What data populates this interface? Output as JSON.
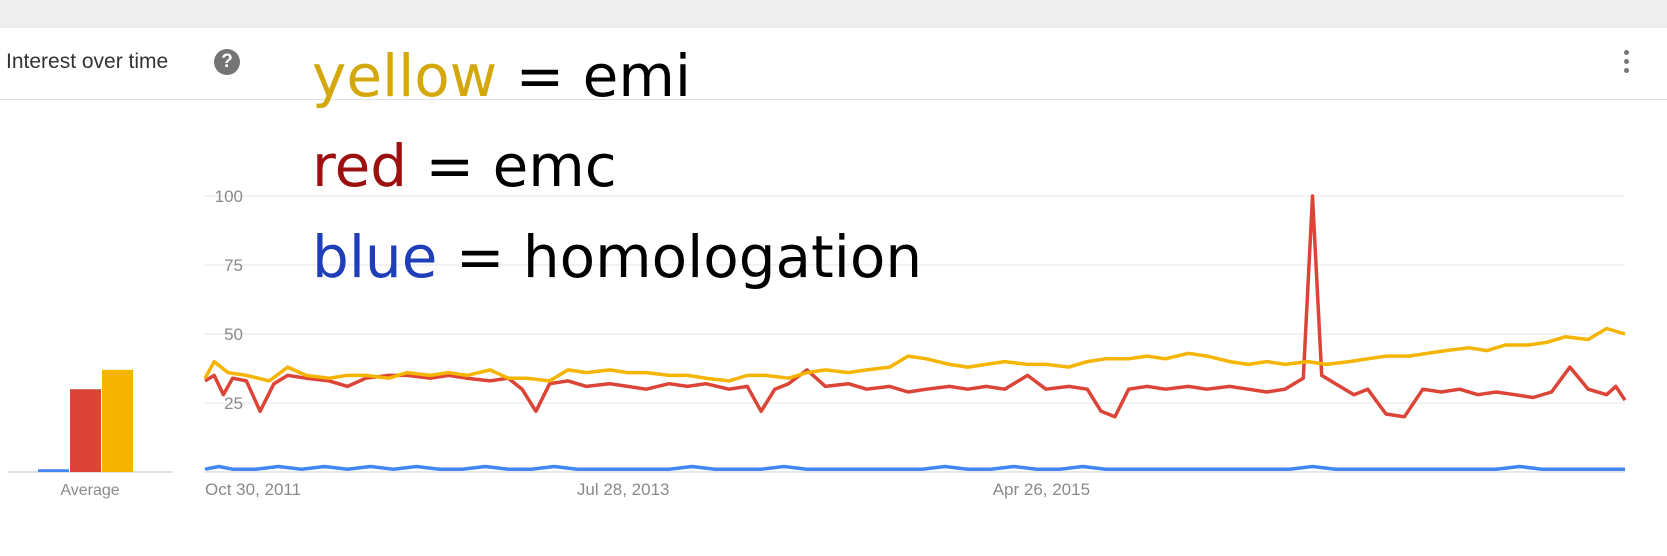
{
  "card": {
    "title": "Interest over time",
    "help_glyph": "?"
  },
  "icons": {
    "help": "help-circle-icon",
    "more": "more-vert-icon"
  },
  "legend": [
    {
      "color_word": "yellow",
      "term": "emi",
      "eq": "=",
      "color": "#d4a70a"
    },
    {
      "color_word": "red",
      "term": "emc",
      "eq": "=",
      "color": "#9c1010"
    },
    {
      "color_word": "blue",
      "term": "homologation",
      "eq": "=",
      "color": "#1f3fb8"
    }
  ],
  "chart_data": [
    {
      "type": "bar",
      "title": "",
      "categories": [
        "Average"
      ],
      "series": [
        {
          "name": "homologation",
          "color": "#4285f4",
          "values": [
            1
          ]
        },
        {
          "name": "emc",
          "color": "#db4437",
          "values": [
            30
          ]
        },
        {
          "name": "emi",
          "color": "#f4b400",
          "values": [
            37
          ]
        }
      ],
      "ylim": [
        0,
        100
      ],
      "xlabel": "",
      "ylabel": ""
    },
    {
      "type": "line",
      "title": "",
      "xlabel": "",
      "ylabel": "",
      "y_ticks": [
        25,
        50,
        75,
        100
      ],
      "ylim": [
        0,
        100
      ],
      "x_ticks": [
        "Oct 30, 2011",
        "Jul 28, 2013",
        "Apr 26, 2015"
      ],
      "x_range": [
        "Oct 30, 2011",
        "Oct 2017"
      ],
      "grid": true,
      "series": [
        {
          "name": "emi",
          "color": "#f4b400",
          "points": [
            [
              "2011-10-30",
              34
            ],
            [
              "2011-11-13",
              40
            ],
            [
              "2011-12-04",
              36
            ],
            [
              "2012-01-01",
              35
            ],
            [
              "2012-02-05",
              33
            ],
            [
              "2012-03-04",
              38
            ],
            [
              "2012-04-01",
              35
            ],
            [
              "2012-05-06",
              34
            ],
            [
              "2012-06-03",
              35
            ],
            [
              "2012-07-01",
              35
            ],
            [
              "2012-08-05",
              34
            ],
            [
              "2012-09-02",
              36
            ],
            [
              "2012-10-07",
              35
            ],
            [
              "2012-11-04",
              36
            ],
            [
              "2012-12-02",
              35
            ],
            [
              "2013-01-06",
              37
            ],
            [
              "2013-02-03",
              34
            ],
            [
              "2013-03-03",
              34
            ],
            [
              "2013-04-07",
              33
            ],
            [
              "2013-05-05",
              37
            ],
            [
              "2013-06-02",
              36
            ],
            [
              "2013-07-07",
              37
            ],
            [
              "2013-08-04",
              36
            ],
            [
              "2013-09-01",
              36
            ],
            [
              "2013-10-06",
              35
            ],
            [
              "2013-11-03",
              35
            ],
            [
              "2013-12-01",
              34
            ],
            [
              "2014-01-05",
              33
            ],
            [
              "2014-02-02",
              35
            ],
            [
              "2014-03-02",
              35
            ],
            [
              "2014-04-06",
              34
            ],
            [
              "2014-05-04",
              36
            ],
            [
              "2014-06-01",
              37
            ],
            [
              "2014-07-06",
              36
            ],
            [
              "2014-08-03",
              37
            ],
            [
              "2014-09-07",
              38
            ],
            [
              "2014-10-05",
              42
            ],
            [
              "2014-11-02",
              41
            ],
            [
              "2014-12-07",
              39
            ],
            [
              "2015-01-04",
              38
            ],
            [
              "2015-02-01",
              39
            ],
            [
              "2015-03-01",
              40
            ],
            [
              "2015-04-05",
              39
            ],
            [
              "2015-05-03",
              39
            ],
            [
              "2015-06-07",
              38
            ],
            [
              "2015-07-05",
              40
            ],
            [
              "2015-08-02",
              41
            ],
            [
              "2015-09-06",
              41
            ],
            [
              "2015-10-04",
              42
            ],
            [
              "2015-11-01",
              41
            ],
            [
              "2015-12-06",
              43
            ],
            [
              "2016-01-03",
              42
            ],
            [
              "2016-02-07",
              40
            ],
            [
              "2016-03-06",
              39
            ],
            [
              "2016-04-03",
              40
            ],
            [
              "2016-05-01",
              39
            ],
            [
              "2016-06-05",
              40
            ],
            [
              "2016-07-03",
              39
            ],
            [
              "2016-08-07",
              40
            ],
            [
              "2016-09-04",
              41
            ],
            [
              "2016-10-02",
              42
            ],
            [
              "2016-11-06",
              42
            ],
            [
              "2016-12-04",
              43
            ],
            [
              "2017-01-01",
              44
            ],
            [
              "2017-02-05",
              45
            ],
            [
              "2017-03-05",
              44
            ],
            [
              "2017-04-02",
              46
            ],
            [
              "2017-05-07",
              46
            ],
            [
              "2017-06-04",
              47
            ],
            [
              "2017-07-02",
              49
            ],
            [
              "2017-08-06",
              48
            ],
            [
              "2017-09-03",
              52
            ],
            [
              "2017-10-01",
              50
            ]
          ]
        },
        {
          "name": "emc",
          "color": "#db4437",
          "points": [
            [
              "2011-10-30",
              33
            ],
            [
              "2011-11-13",
              35
            ],
            [
              "2011-11-27",
              28
            ],
            [
              "2011-12-11",
              34
            ],
            [
              "2012-01-01",
              33
            ],
            [
              "2012-01-22",
              22
            ],
            [
              "2012-02-12",
              32
            ],
            [
              "2012-03-04",
              35
            ],
            [
              "2012-04-01",
              34
            ],
            [
              "2012-05-06",
              33
            ],
            [
              "2012-06-03",
              31
            ],
            [
              "2012-07-01",
              34
            ],
            [
              "2012-08-05",
              35
            ],
            [
              "2012-09-02",
              35
            ],
            [
              "2012-10-07",
              34
            ],
            [
              "2012-11-04",
              35
            ],
            [
              "2012-12-02",
              34
            ],
            [
              "2013-01-06",
              33
            ],
            [
              "2013-02-03",
              34
            ],
            [
              "2013-02-24",
              30
            ],
            [
              "2013-03-17",
              22
            ],
            [
              "2013-04-07",
              32
            ],
            [
              "2013-05-05",
              33
            ],
            [
              "2013-06-02",
              31
            ],
            [
              "2013-07-07",
              32
            ],
            [
              "2013-08-04",
              31
            ],
            [
              "2013-09-01",
              30
            ],
            [
              "2013-10-06",
              32
            ],
            [
              "2013-11-03",
              31
            ],
            [
              "2013-12-01",
              32
            ],
            [
              "2014-01-05",
              30
            ],
            [
              "2014-02-02",
              31
            ],
            [
              "2014-02-23",
              22
            ],
            [
              "2014-03-16",
              30
            ],
            [
              "2014-04-06",
              32
            ],
            [
              "2014-05-04",
              37
            ],
            [
              "2014-06-01",
              31
            ],
            [
              "2014-07-06",
              32
            ],
            [
              "2014-08-03",
              30
            ],
            [
              "2014-09-07",
              31
            ],
            [
              "2014-10-05",
              29
            ],
            [
              "2014-11-02",
              30
            ],
            [
              "2014-12-07",
              31
            ],
            [
              "2015-01-04",
              30
            ],
            [
              "2015-02-01",
              31
            ],
            [
              "2015-03-01",
              30
            ],
            [
              "2015-04-05",
              35
            ],
            [
              "2015-05-03",
              30
            ],
            [
              "2015-06-07",
              31
            ],
            [
              "2015-07-05",
              30
            ],
            [
              "2015-07-26",
              22
            ],
            [
              "2015-08-16",
              20
            ],
            [
              "2015-09-06",
              30
            ],
            [
              "2015-10-04",
              31
            ],
            [
              "2015-11-01",
              30
            ],
            [
              "2015-12-06",
              31
            ],
            [
              "2016-01-03",
              30
            ],
            [
              "2016-02-07",
              31
            ],
            [
              "2016-03-06",
              30
            ],
            [
              "2016-04-03",
              29
            ],
            [
              "2016-05-01",
              30
            ],
            [
              "2016-05-29",
              34
            ],
            [
              "2016-06-12",
              100
            ],
            [
              "2016-06-26",
              35
            ],
            [
              "2016-07-17",
              32
            ],
            [
              "2016-08-14",
              28
            ],
            [
              "2016-09-04",
              30
            ],
            [
              "2016-10-02",
              21
            ],
            [
              "2016-10-30",
              20
            ],
            [
              "2016-11-27",
              30
            ],
            [
              "2016-12-25",
              29
            ],
            [
              "2017-01-22",
              30
            ],
            [
              "2017-02-19",
              28
            ],
            [
              "2017-03-19",
              29
            ],
            [
              "2017-04-16",
              28
            ],
            [
              "2017-05-14",
              27
            ],
            [
              "2017-06-11",
              29
            ],
            [
              "2017-07-09",
              38
            ],
            [
              "2017-08-06",
              30
            ],
            [
              "2017-09-03",
              28
            ],
            [
              "2017-09-17",
              31
            ],
            [
              "2017-10-01",
              26
            ]
          ]
        },
        {
          "name": "homologation",
          "color": "#4285f4",
          "points": [
            [
              "2011-10-30",
              1
            ],
            [
              "2011-11-20",
              2
            ],
            [
              "2011-12-11",
              1
            ],
            [
              "2012-01-15",
              1
            ],
            [
              "2012-02-19",
              2
            ],
            [
              "2012-03-25",
              1
            ],
            [
              "2012-04-29",
              2
            ],
            [
              "2012-06-03",
              1
            ],
            [
              "2012-07-08",
              2
            ],
            [
              "2012-08-12",
              1
            ],
            [
              "2012-09-16",
              2
            ],
            [
              "2012-10-21",
              1
            ],
            [
              "2012-11-25",
              1
            ],
            [
              "2012-12-30",
              2
            ],
            [
              "2013-02-03",
              1
            ],
            [
              "2013-03-10",
              1
            ],
            [
              "2013-04-14",
              2
            ],
            [
              "2013-05-19",
              1
            ],
            [
              "2013-06-23",
              1
            ],
            [
              "2013-07-28",
              1
            ],
            [
              "2013-09-01",
              1
            ],
            [
              "2013-10-06",
              1
            ],
            [
              "2013-11-10",
              2
            ],
            [
              "2013-12-15",
              1
            ],
            [
              "2014-01-19",
              1
            ],
            [
              "2014-02-23",
              1
            ],
            [
              "2014-03-30",
              2
            ],
            [
              "2014-05-04",
              1
            ],
            [
              "2014-06-08",
              1
            ],
            [
              "2014-07-13",
              1
            ],
            [
              "2014-08-17",
              1
            ],
            [
              "2014-09-21",
              1
            ],
            [
              "2014-10-26",
              1
            ],
            [
              "2014-11-30",
              2
            ],
            [
              "2015-01-04",
              1
            ],
            [
              "2015-02-08",
              1
            ],
            [
              "2015-03-15",
              2
            ],
            [
              "2015-04-19",
              1
            ],
            [
              "2015-05-24",
              1
            ],
            [
              "2015-06-28",
              2
            ],
            [
              "2015-08-02",
              1
            ],
            [
              "2015-09-06",
              1
            ],
            [
              "2015-10-11",
              1
            ],
            [
              "2015-11-15",
              1
            ],
            [
              "2015-12-20",
              1
            ],
            [
              "2016-01-24",
              1
            ],
            [
              "2016-02-28",
              1
            ],
            [
              "2016-04-03",
              1
            ],
            [
              "2016-05-08",
              1
            ],
            [
              "2016-06-12",
              2
            ],
            [
              "2016-07-17",
              1
            ],
            [
              "2016-08-21",
              1
            ],
            [
              "2016-09-25",
              1
            ],
            [
              "2016-10-30",
              1
            ],
            [
              "2016-12-04",
              1
            ],
            [
              "2017-01-08",
              1
            ],
            [
              "2017-02-12",
              1
            ],
            [
              "2017-03-19",
              1
            ],
            [
              "2017-04-23",
              2
            ],
            [
              "2017-05-28",
              1
            ],
            [
              "2017-07-02",
              1
            ],
            [
              "2017-08-06",
              1
            ],
            [
              "2017-09-10",
              1
            ],
            [
              "2017-10-01",
              1
            ]
          ]
        }
      ]
    }
  ]
}
